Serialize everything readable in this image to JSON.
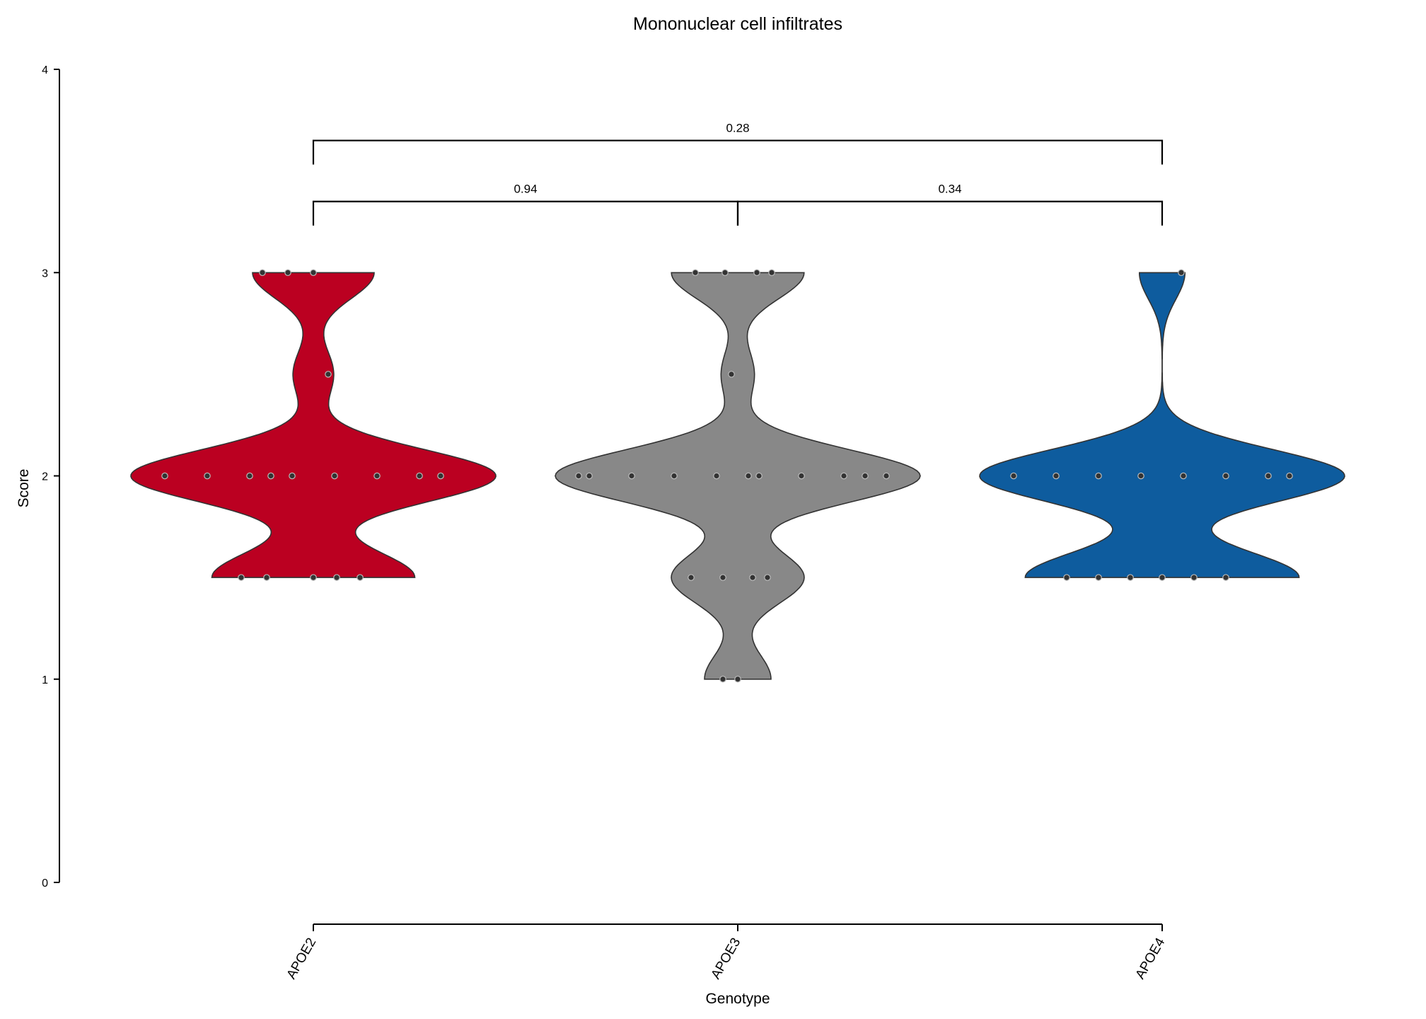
{
  "chart_data": {
    "type": "violin",
    "title": "Mononuclear cell infiltrates",
    "xlabel": "Genotype",
    "ylabel": "Score",
    "ylim": [
      0,
      4
    ],
    "yticks": [
      "0",
      "1",
      "2",
      "3",
      "4"
    ],
    "categories": [
      "APOE2",
      "APOE3",
      "APOE4"
    ],
    "colors": {
      "APOE2": "#BB0021",
      "APOE3": "#888888",
      "APOE4": "#0E5C9E"
    },
    "groups": [
      {
        "name": "APOE2",
        "points": [
          {
            "y": 3,
            "dx": -0.12
          },
          {
            "y": 3,
            "dx": -0.06
          },
          {
            "y": 3,
            "dx": 0.0
          },
          {
            "y": 2.5,
            "dx": 0.035
          },
          {
            "y": 2,
            "dx": -0.35
          },
          {
            "y": 2,
            "dx": -0.25
          },
          {
            "y": 2,
            "dx": -0.15
          },
          {
            "y": 2,
            "dx": -0.1
          },
          {
            "y": 2,
            "dx": -0.05
          },
          {
            "y": 2,
            "dx": 0.05
          },
          {
            "y": 2,
            "dx": 0.15
          },
          {
            "y": 2,
            "dx": 0.25
          },
          {
            "y": 2,
            "dx": 0.3
          },
          {
            "y": 1.5,
            "dx": -0.17
          },
          {
            "y": 1.5,
            "dx": -0.11
          },
          {
            "y": 1.5,
            "dx": 0.0
          },
          {
            "y": 1.5,
            "dx": 0.055
          },
          {
            "y": 1.5,
            "dx": 0.11
          }
        ]
      },
      {
        "name": "APOE3",
        "points": [
          {
            "y": 3,
            "dx": -0.1
          },
          {
            "y": 3,
            "dx": -0.03
          },
          {
            "y": 3,
            "dx": 0.045
          },
          {
            "y": 3,
            "dx": 0.08
          },
          {
            "y": 2.5,
            "dx": -0.015
          },
          {
            "y": 2,
            "dx": -0.375
          },
          {
            "y": 2,
            "dx": -0.35
          },
          {
            "y": 2,
            "dx": -0.25
          },
          {
            "y": 2,
            "dx": -0.15
          },
          {
            "y": 2,
            "dx": -0.05
          },
          {
            "y": 2,
            "dx": 0.025
          },
          {
            "y": 2,
            "dx": 0.05
          },
          {
            "y": 2,
            "dx": 0.15
          },
          {
            "y": 2,
            "dx": 0.25
          },
          {
            "y": 2,
            "dx": 0.3
          },
          {
            "y": 2,
            "dx": 0.35
          },
          {
            "y": 1.5,
            "dx": -0.11
          },
          {
            "y": 1.5,
            "dx": -0.035
          },
          {
            "y": 1.5,
            "dx": 0.035
          },
          {
            "y": 1.5,
            "dx": 0.07
          },
          {
            "y": 1,
            "dx": -0.035
          },
          {
            "y": 1,
            "dx": 0.0
          }
        ]
      },
      {
        "name": "APOE4",
        "points": [
          {
            "y": 3,
            "dx": 0.045
          },
          {
            "y": 2,
            "dx": -0.35
          },
          {
            "y": 2,
            "dx": -0.25
          },
          {
            "y": 2,
            "dx": -0.15
          },
          {
            "y": 2,
            "dx": -0.05
          },
          {
            "y": 2,
            "dx": 0.05
          },
          {
            "y": 2,
            "dx": 0.15
          },
          {
            "y": 2,
            "dx": 0.25
          },
          {
            "y": 2,
            "dx": 0.3
          },
          {
            "y": 1.5,
            "dx": -0.225
          },
          {
            "y": 1.5,
            "dx": -0.15
          },
          {
            "y": 1.5,
            "dx": -0.075
          },
          {
            "y": 1.5,
            "dx": 0.0
          },
          {
            "y": 1.5,
            "dx": 0.075
          },
          {
            "y": 1.5,
            "dx": 0.15
          }
        ]
      }
    ],
    "comparisons": [
      {
        "from": "APOE2",
        "to": "APOE3",
        "label": "0.94",
        "y": 3.35
      },
      {
        "from": "APOE3",
        "to": "APOE4",
        "label": "0.34",
        "y": 3.35
      },
      {
        "from": "APOE2",
        "to": "APOE4",
        "label": "0.28",
        "y": 3.65
      }
    ]
  }
}
